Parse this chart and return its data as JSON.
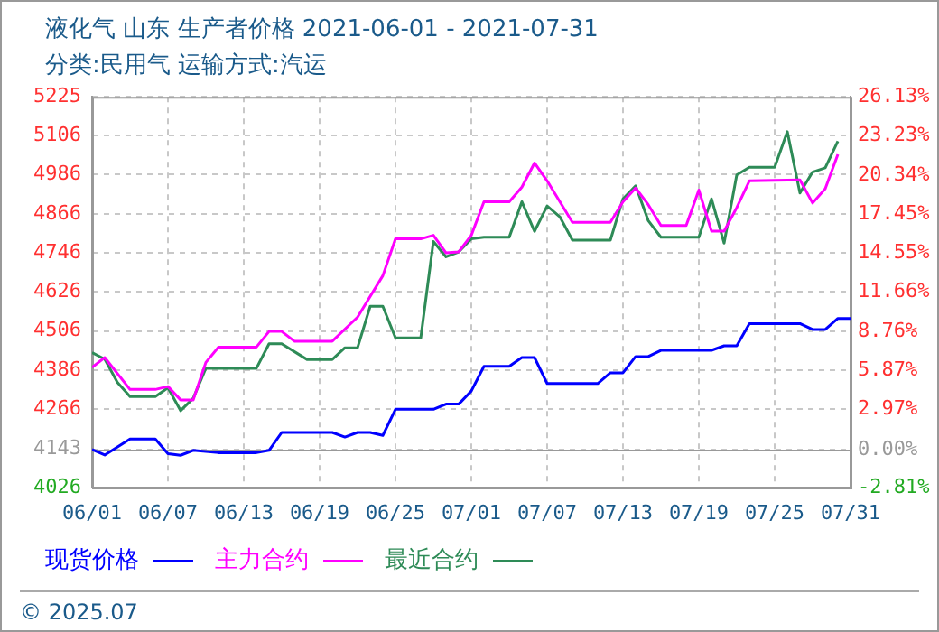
{
  "chart_data": {
    "type": "line",
    "title": "液化气 山东 生产者价格 2021-06-01 - 2021-07-31",
    "subtitle": "分类:民用气 运输方式:汽运",
    "annotations": [
      "© 2025.07"
    ],
    "xlim": [
      "2021-06-01",
      "2021-07-31"
    ],
    "xticks": [
      {
        "value": "2021-06-01",
        "label": "06/01"
      },
      {
        "value": "2021-06-07",
        "label": "06/07"
      },
      {
        "value": "2021-06-13",
        "label": "06/13"
      },
      {
        "value": "2021-06-19",
        "label": "06/19"
      },
      {
        "value": "2021-06-25",
        "label": "06/25"
      },
      {
        "value": "2021-07-01",
        "label": "07/01"
      },
      {
        "value": "2021-07-07",
        "label": "07/07"
      },
      {
        "value": "2021-07-13",
        "label": "07/13"
      },
      {
        "value": "2021-07-19",
        "label": "07/19"
      },
      {
        "value": "2021-07-25",
        "label": "07/25"
      },
      {
        "value": "2021-07-31",
        "label": "07/31"
      }
    ],
    "ylim": [
      4026,
      5225
    ],
    "yticks": [
      4026,
      4143,
      4266,
      4386,
      4506,
      4626,
      4746,
      4866,
      4986,
      5106,
      5225
    ],
    "y2lim": [
      -2.81,
      26.13
    ],
    "y2ticks": [
      {
        "value": -2.81,
        "label": "-2.81%"
      },
      {
        "value": 0,
        "label": "0.00%"
      },
      {
        "value": 2.97,
        "label": "2.97%"
      },
      {
        "value": 5.87,
        "label": "5.87%"
      },
      {
        "value": 8.76,
        "label": "8.76%"
      },
      {
        "value": 11.66,
        "label": "11.66%"
      },
      {
        "value": 14.55,
        "label": "14.55%"
      },
      {
        "value": 17.45,
        "label": "17.45%"
      },
      {
        "value": 20.34,
        "label": "20.34%"
      },
      {
        "value": 23.23,
        "label": "23.23%"
      },
      {
        "value": 26.13,
        "label": "26.13%"
      }
    ],
    "grid": true,
    "legend": "bottom",
    "series": [
      {
        "name": "现货价格",
        "color": "#0000ff",
        "x": [
          "2021-06-01",
          "2021-06-02",
          "2021-06-04",
          "2021-06-06",
          "2021-06-07",
          "2021-06-08",
          "2021-06-09",
          "2021-06-11",
          "2021-06-14",
          "2021-06-15",
          "2021-06-16",
          "2021-06-20",
          "2021-06-21",
          "2021-06-22",
          "2021-06-23",
          "2021-06-24",
          "2021-06-25",
          "2021-06-28",
          "2021-06-29",
          "2021-06-30",
          "2021-07-01",
          "2021-07-02",
          "2021-07-04",
          "2021-07-05",
          "2021-07-06",
          "2021-07-07",
          "2021-07-11",
          "2021-07-12",
          "2021-07-13",
          "2021-07-14",
          "2021-07-15",
          "2021-07-16",
          "2021-07-20",
          "2021-07-21",
          "2021-07-22",
          "2021-07-23",
          "2021-07-27",
          "2021-07-28",
          "2021-07-29",
          "2021-07-30",
          "2021-07-31"
        ],
        "values": [
          4143,
          4126,
          4175,
          4175,
          4130,
          4125,
          4140,
          4133,
          4133,
          4140,
          4195,
          4195,
          4181,
          4195,
          4195,
          4186,
          4266,
          4266,
          4282,
          4282,
          4322,
          4398,
          4398,
          4425,
          4425,
          4345,
          4345,
          4378,
          4378,
          4428,
          4428,
          4447,
          4447,
          4461,
          4461,
          4529,
          4529,
          4511,
          4511,
          4545,
          4545
        ]
      },
      {
        "name": "主力合约",
        "color": "#ff00ff",
        "x": [
          "2021-06-01",
          "2021-06-02",
          "2021-06-04",
          "2021-06-06",
          "2021-06-07",
          "2021-06-08",
          "2021-06-09",
          "2021-06-10",
          "2021-06-11",
          "2021-06-14",
          "2021-06-15",
          "2021-06-16",
          "2021-06-17",
          "2021-06-20",
          "2021-06-22",
          "2021-06-24",
          "2021-06-25",
          "2021-06-27",
          "2021-06-28",
          "2021-06-29",
          "2021-06-30",
          "2021-07-01",
          "2021-07-02",
          "2021-07-04",
          "2021-07-05",
          "2021-07-06",
          "2021-07-07",
          "2021-07-09",
          "2021-07-12",
          "2021-07-13",
          "2021-07-14",
          "2021-07-15",
          "2021-07-16",
          "2021-07-18",
          "2021-07-19",
          "2021-07-20",
          "2021-07-21",
          "2021-07-22",
          "2021-07-23",
          "2021-07-27",
          "2021-07-28",
          "2021-07-29",
          "2021-07-30"
        ],
        "values": [
          4395,
          4425,
          4327,
          4327,
          4336,
          4295,
          4295,
          4410,
          4457,
          4457,
          4505,
          4505,
          4475,
          4475,
          4549,
          4676,
          4789,
          4789,
          4800,
          4746,
          4749,
          4800,
          4903,
          4903,
          4948,
          5022,
          4967,
          4840,
          4840,
          4903,
          4945,
          4894,
          4830,
          4830,
          4939,
          4813,
          4813,
          4885,
          4967,
          4970,
          4899,
          4943,
          5048
        ]
      },
      {
        "name": "最近合约",
        "color": "#2e8b57",
        "x": [
          "2021-06-01",
          "2021-06-02",
          "2021-06-03",
          "2021-06-04",
          "2021-06-06",
          "2021-06-07",
          "2021-06-08",
          "2021-06-09",
          "2021-06-10",
          "2021-06-14",
          "2021-06-15",
          "2021-06-16",
          "2021-06-18",
          "2021-06-20",
          "2021-06-21",
          "2021-06-22",
          "2021-06-23",
          "2021-06-24",
          "2021-06-25",
          "2021-06-27",
          "2021-06-28",
          "2021-06-29",
          "2021-06-30",
          "2021-07-01",
          "2021-07-02",
          "2021-07-04",
          "2021-07-05",
          "2021-07-06",
          "2021-07-07",
          "2021-07-08",
          "2021-07-09",
          "2021-07-12",
          "2021-07-13",
          "2021-07-14",
          "2021-07-15",
          "2021-07-16",
          "2021-07-19",
          "2021-07-20",
          "2021-07-21",
          "2021-07-22",
          "2021-07-23",
          "2021-07-25",
          "2021-07-26",
          "2021-07-27",
          "2021-07-28",
          "2021-07-29",
          "2021-07-30"
        ],
        "values": [
          4440,
          4420,
          4349,
          4305,
          4305,
          4332,
          4262,
          4300,
          4392,
          4392,
          4467,
          4467,
          4419,
          4419,
          4455,
          4455,
          4582,
          4582,
          4485,
          4485,
          4781,
          4734,
          4749,
          4789,
          4794,
          4794,
          4903,
          4812,
          4890,
          4857,
          4785,
          4785,
          4912,
          4952,
          4845,
          4794,
          4794,
          4912,
          4776,
          4985,
          5009,
          5009,
          5118,
          4930,
          4994,
          5007,
          5089
        ]
      }
    ]
  }
}
